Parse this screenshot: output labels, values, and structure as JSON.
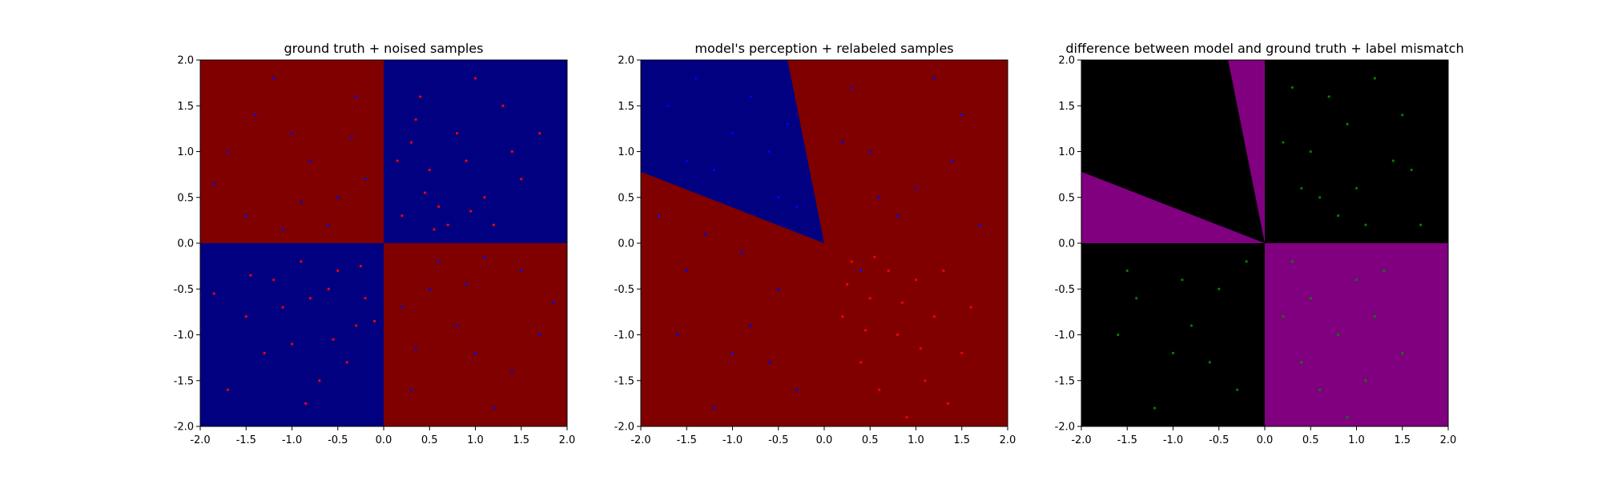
{
  "colors": {
    "dark_red": "#800000",
    "dark_blue": "#000080",
    "black": "#000000",
    "purple": "#800080",
    "red_point": "#ff0000",
    "blue_point": "#0000ff",
    "green_point": "#008000",
    "axis": "#000000"
  },
  "chart_data": [
    {
      "type": "scatter",
      "title": "ground truth + noised samples",
      "xlim": [
        -2.0,
        2.0
      ],
      "ylim": [
        -2.0,
        2.0
      ],
      "xticks": [
        "-2.0",
        "-1.5",
        "-1.0",
        "-0.5",
        "0.0",
        "0.5",
        "1.0",
        "1.5",
        "2.0"
      ],
      "yticks": [
        "-2.0",
        "-1.5",
        "-1.0",
        "-0.5",
        "0.0",
        "0.5",
        "1.0",
        "1.5",
        "2.0"
      ],
      "grid": false,
      "background_regions": [
        {
          "x": [
            -2.0,
            0.0
          ],
          "y": [
            0.0,
            2.0
          ],
          "color": "dark_red"
        },
        {
          "x": [
            0.0,
            2.0
          ],
          "y": [
            0.0,
            2.0
          ],
          "color": "dark_blue"
        },
        {
          "x": [
            -2.0,
            0.0
          ],
          "y": [
            -2.0,
            0.0
          ],
          "color": "dark_blue"
        },
        {
          "x": [
            0.0,
            2.0
          ],
          "y": [
            -2.0,
            0.0
          ],
          "color": "dark_red"
        }
      ],
      "series": [
        {
          "color": "red_point",
          "points": [
            [
              0.3,
              1.1
            ],
            [
              0.5,
              0.8
            ],
            [
              0.8,
              1.2
            ],
            [
              1.1,
              0.5
            ],
            [
              0.2,
              0.3
            ],
            [
              0.6,
              0.4
            ],
            [
              0.9,
              0.9
            ],
            [
              1.3,
              1.5
            ],
            [
              0.4,
              1.6
            ],
            [
              1.5,
              0.7
            ],
            [
              0.7,
              0.2
            ],
            [
              1.0,
              1.8
            ],
            [
              0.15,
              0.9
            ],
            [
              1.2,
              0.2
            ],
            [
              0.45,
              0.55
            ],
            [
              1.7,
              1.2
            ],
            [
              0.95,
              0.35
            ],
            [
              0.35,
              1.35
            ],
            [
              1.4,
              1.0
            ],
            [
              0.55,
              0.15
            ],
            [
              -0.5,
              -0.3
            ],
            [
              -0.8,
              -0.6
            ],
            [
              -1.2,
              -0.4
            ],
            [
              -0.3,
              -0.9
            ],
            [
              -1.0,
              -1.1
            ],
            [
              -0.6,
              -0.5
            ],
            [
              -1.5,
              -0.8
            ],
            [
              -0.9,
              -0.2
            ],
            [
              -0.4,
              -1.3
            ],
            [
              -1.3,
              -1.2
            ],
            [
              -0.2,
              -0.6
            ],
            [
              -0.7,
              -1.5
            ],
            [
              -1.1,
              -0.7
            ],
            [
              -1.7,
              -1.6
            ],
            [
              -0.25,
              -0.25
            ],
            [
              -0.55,
              -1.05
            ],
            [
              -1.45,
              -0.35
            ],
            [
              -0.85,
              -1.75
            ],
            [
              -0.1,
              -0.85
            ],
            [
              -1.85,
              -0.55
            ]
          ]
        },
        {
          "color": "blue_point",
          "points": [
            [
              -0.5,
              0.5
            ],
            [
              -1.0,
              1.2
            ],
            [
              -1.5,
              0.3
            ],
            [
              -0.3,
              1.6
            ],
            [
              -0.8,
              0.9
            ],
            [
              -1.2,
              1.8
            ],
            [
              -0.6,
              0.2
            ],
            [
              -1.7,
              1.0
            ],
            [
              -0.2,
              0.7
            ],
            [
              -1.4,
              1.4
            ],
            [
              0.5,
              -0.5
            ],
            [
              1.0,
              -1.2
            ],
            [
              1.5,
              -0.3
            ],
            [
              0.3,
              -1.6
            ],
            [
              0.8,
              -0.9
            ],
            [
              1.2,
              -1.8
            ],
            [
              0.6,
              -0.2
            ],
            [
              1.7,
              -1.0
            ],
            [
              0.2,
              -0.7
            ],
            [
              1.4,
              -1.4
            ],
            [
              -0.9,
              0.45
            ],
            [
              -1.85,
              0.65
            ],
            [
              0.9,
              -0.45
            ],
            [
              1.85,
              -0.65
            ],
            [
              -0.35,
              1.15
            ],
            [
              0.35,
              -1.15
            ],
            [
              -1.1,
              0.15
            ],
            [
              1.1,
              -0.15
            ]
          ]
        }
      ]
    },
    {
      "type": "scatter",
      "title": "model's perception + relabeled samples",
      "xlim": [
        -2.0,
        2.0
      ],
      "ylim": [
        -2.0,
        2.0
      ],
      "xticks": [
        "-2.0",
        "-1.5",
        "-1.0",
        "-0.5",
        "0.0",
        "0.5",
        "1.0",
        "1.5",
        "2.0"
      ],
      "yticks": [
        "-2.0",
        "-1.5",
        "-1.0",
        "-0.5",
        "0.0",
        "0.5",
        "1.0",
        "1.5",
        "2.0"
      ],
      "grid": false,
      "background_color": "dark_red",
      "background_polygons": [
        {
          "points": [
            [
              -2.0,
              2.0
            ],
            [
              -0.4,
              2.0
            ],
            [
              0.0,
              0.0
            ],
            [
              -2.0,
              0.78
            ]
          ],
          "color": "dark_blue"
        }
      ],
      "series": [
        {
          "color": "blue_point",
          "points": [
            [
              -0.5,
              0.5
            ],
            [
              -1.0,
              1.2
            ],
            [
              -1.5,
              0.9
            ],
            [
              -0.8,
              1.6
            ],
            [
              -1.2,
              0.8
            ],
            [
              -0.6,
              1.0
            ],
            [
              -1.7,
              1.5
            ],
            [
              -0.3,
              0.4
            ],
            [
              -0.4,
              1.3
            ],
            [
              -1.4,
              1.8
            ],
            [
              0.5,
              1.0
            ],
            [
              1.0,
              0.6
            ],
            [
              1.5,
              1.4
            ],
            [
              0.3,
              1.7
            ],
            [
              0.8,
              0.3
            ],
            [
              1.2,
              1.8
            ],
            [
              0.6,
              0.5
            ],
            [
              1.7,
              0.2
            ],
            [
              0.2,
              1.1
            ],
            [
              -0.5,
              -0.5
            ],
            [
              -1.0,
              -1.2
            ],
            [
              -1.5,
              -0.3
            ],
            [
              -0.3,
              -1.6
            ],
            [
              -0.8,
              -0.9
            ],
            [
              -1.2,
              -1.8
            ],
            [
              -1.8,
              0.3
            ],
            [
              -1.3,
              0.1
            ],
            [
              -0.9,
              -0.1
            ],
            [
              0.4,
              -0.3
            ],
            [
              -0.6,
              -1.3
            ],
            [
              1.4,
              0.9
            ],
            [
              -1.6,
              -1.0
            ]
          ]
        },
        {
          "color": "red_point",
          "points": [
            [
              0.3,
              -0.2
            ],
            [
              0.5,
              -0.6
            ],
            [
              0.8,
              -1.0
            ],
            [
              1.0,
              -0.4
            ],
            [
              0.4,
              -1.3
            ],
            [
              1.2,
              -0.8
            ],
            [
              0.6,
              -1.6
            ],
            [
              1.5,
              -1.2
            ],
            [
              0.2,
              -0.8
            ],
            [
              0.9,
              -1.9
            ],
            [
              1.3,
              -0.3
            ],
            [
              0.7,
              -0.3
            ],
            [
              1.1,
              -1.5
            ],
            [
              0.45,
              -0.95
            ],
            [
              1.6,
              -0.7
            ],
            [
              0.25,
              -0.45
            ],
            [
              0.85,
              -0.65
            ],
            [
              1.35,
              -1.75
            ],
            [
              0.55,
              -0.15
            ],
            [
              1.05,
              -1.15
            ]
          ]
        }
      ]
    },
    {
      "type": "scatter",
      "title": "difference between model and ground truth + label mismatch",
      "xlim": [
        -2.0,
        2.0
      ],
      "ylim": [
        -2.0,
        2.0
      ],
      "xticks": [
        "-2.0",
        "-1.5",
        "-1.0",
        "-0.5",
        "0.0",
        "0.5",
        "1.0",
        "1.5",
        "2.0"
      ],
      "yticks": [
        "-2.0",
        "-1.5",
        "-1.0",
        "-0.5",
        "0.0",
        "0.5",
        "1.0",
        "1.5",
        "2.0"
      ],
      "grid": false,
      "background_color": "black",
      "background_polygons": [
        {
          "points": [
            [
              -0.4,
              2.0
            ],
            [
              0.0,
              2.0
            ],
            [
              0.0,
              0.0
            ]
          ],
          "color": "purple"
        },
        {
          "points": [
            [
              -2.0,
              0.78
            ],
            [
              0.0,
              0.0
            ],
            [
              -2.0,
              0.0
            ]
          ],
          "color": "purple"
        },
        {
          "points": [
            [
              0.0,
              0.0
            ],
            [
              2.0,
              0.0
            ],
            [
              2.0,
              -2.0
            ],
            [
              0.0,
              -2.0
            ]
          ],
          "color": "purple"
        }
      ],
      "series": [
        {
          "color": "green_point",
          "points": [
            [
              0.5,
              1.0
            ],
            [
              1.0,
              0.6
            ],
            [
              1.5,
              1.4
            ],
            [
              0.3,
              1.7
            ],
            [
              0.8,
              0.3
            ],
            [
              1.2,
              1.8
            ],
            [
              0.6,
              0.5
            ],
            [
              1.7,
              0.2
            ],
            [
              0.2,
              1.1
            ],
            [
              1.4,
              0.9
            ],
            [
              0.9,
              1.3
            ],
            [
              0.4,
              0.6
            ],
            [
              1.6,
              0.8
            ],
            [
              1.1,
              0.2
            ],
            [
              0.7,
              1.6
            ],
            [
              -0.5,
              -0.5
            ],
            [
              -1.0,
              -1.2
            ],
            [
              -1.5,
              -0.3
            ],
            [
              -0.3,
              -1.6
            ],
            [
              -0.8,
              -0.9
            ],
            [
              -1.2,
              -1.8
            ],
            [
              -0.6,
              -1.3
            ],
            [
              -1.6,
              -1.0
            ],
            [
              -0.2,
              -0.2
            ],
            [
              -1.4,
              -0.6
            ],
            [
              -0.9,
              -0.4
            ],
            [
              0.3,
              -0.2
            ],
            [
              0.5,
              -0.6
            ],
            [
              0.8,
              -1.0
            ],
            [
              1.0,
              -0.4
            ],
            [
              0.4,
              -1.3
            ],
            [
              1.2,
              -0.8
            ],
            [
              0.6,
              -1.6
            ],
            [
              1.5,
              -1.2
            ],
            [
              0.2,
              -0.8
            ],
            [
              0.9,
              -1.9
            ],
            [
              1.3,
              -0.3
            ],
            [
              1.1,
              -1.5
            ]
          ]
        }
      ]
    }
  ]
}
